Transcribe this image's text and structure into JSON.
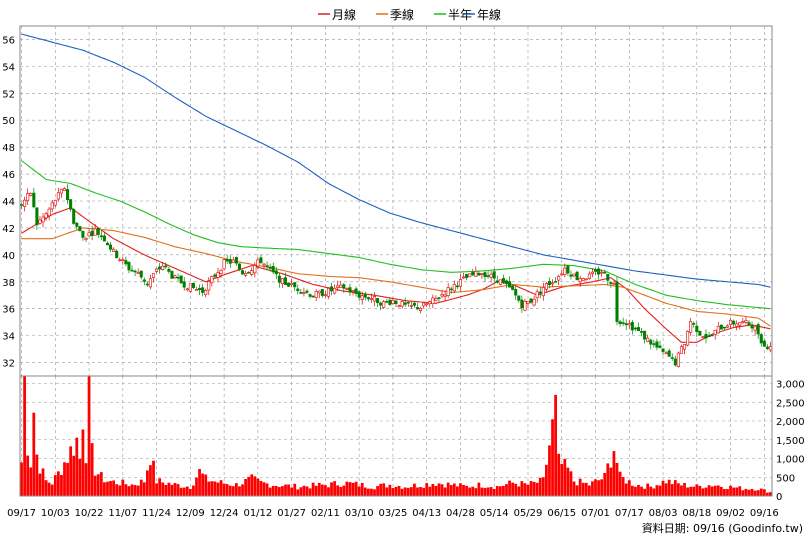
{
  "legend": [
    {
      "label": "月線",
      "color": "#e02020"
    },
    {
      "label": "季線",
      "color": "#e07020"
    },
    {
      "label": "半年",
      "color": "#20c020"
    },
    {
      "label": "年線",
      "color": "#2060c0"
    }
  ],
  "footer": "資料日期: 09/16 (Goodinfo.tw)",
  "colors": {
    "up": "#e00000",
    "down": "#008000",
    "volume": "#ff0000",
    "grid": "#999999"
  },
  "chart_data": {
    "type": "candlestick",
    "price_axis": {
      "min": 31,
      "max": 57,
      "ticks": [
        32,
        34,
        36,
        38,
        40,
        42,
        44,
        46,
        48,
        50,
        52,
        54,
        56
      ]
    },
    "volume_axis": {
      "min": 0,
      "max": 3200,
      "ticks": [
        "0",
        "500",
        "1,000",
        "1,500",
        "2,000",
        "2,500",
        "3,000"
      ],
      "tick_values": [
        0,
        500,
        1000,
        1500,
        2000,
        2500,
        3000
      ]
    },
    "x_labels": [
      "09/17",
      "10/03",
      "10/22",
      "11/07",
      "11/24",
      "12/09",
      "12/24",
      "01/12",
      "01/27",
      "02/11",
      "03/10",
      "03/25",
      "04/13",
      "04/28",
      "05/14",
      "05/29",
      "06/15",
      "07/01",
      "07/17",
      "08/03",
      "08/18",
      "09/02",
      "09/16"
    ],
    "x_label_index": [
      0,
      11,
      22,
      33,
      44,
      55,
      66,
      77,
      88,
      99,
      110,
      121,
      132,
      143,
      154,
      165,
      176,
      187,
      198,
      209,
      220,
      231,
      242
    ],
    "bars": 245,
    "close_keypoints": [
      [
        0,
        43.8
      ],
      [
        3,
        44.6
      ],
      [
        5,
        42.3
      ],
      [
        8,
        43.0
      ],
      [
        11,
        44.1
      ],
      [
        14,
        45.0
      ],
      [
        17,
        42.5
      ],
      [
        20,
        41.3
      ],
      [
        24,
        41.8
      ],
      [
        27,
        41.2
      ],
      [
        30,
        40.2
      ],
      [
        35,
        39.0
      ],
      [
        38,
        38.6
      ],
      [
        41,
        37.9
      ],
      [
        44,
        38.8
      ],
      [
        46,
        39.2
      ],
      [
        50,
        38.2
      ],
      [
        55,
        37.6
      ],
      [
        59,
        37.3
      ],
      [
        63,
        38.5
      ],
      [
        66,
        39.4
      ],
      [
        69,
        39.5
      ],
      [
        72,
        38.7
      ],
      [
        75,
        39.0
      ],
      [
        78,
        39.6
      ],
      [
        81,
        38.8
      ],
      [
        85,
        38.0
      ],
      [
        90,
        37.5
      ],
      [
        95,
        37.0
      ],
      [
        100,
        37.3
      ],
      [
        105,
        37.6
      ],
      [
        110,
        37.0
      ],
      [
        114,
        36.8
      ],
      [
        118,
        36.4
      ],
      [
        121,
        36.6
      ],
      [
        125,
        36.2
      ],
      [
        130,
        36.1
      ],
      [
        135,
        36.7
      ],
      [
        140,
        37.6
      ],
      [
        145,
        38.3
      ],
      [
        150,
        38.7
      ],
      [
        155,
        38.2
      ],
      [
        160,
        37.3
      ],
      [
        163,
        36.3
      ],
      [
        166,
        36.6
      ],
      [
        170,
        37.6
      ],
      [
        174,
        38.2
      ],
      [
        177,
        39.0
      ],
      [
        181,
        38.3
      ],
      [
        185,
        38.4
      ],
      [
        189,
        38.8
      ],
      [
        193,
        37.8
      ],
      [
        194,
        35.2
      ],
      [
        197,
        35.0
      ],
      [
        201,
        34.3
      ],
      [
        205,
        33.5
      ],
      [
        208,
        32.9
      ],
      [
        211,
        32.4
      ],
      [
        213,
        32.0
      ],
      [
        216,
        33.5
      ],
      [
        218,
        35.1
      ],
      [
        221,
        34.2
      ],
      [
        224,
        33.8
      ],
      [
        227,
        34.5
      ],
      [
        230,
        34.9
      ],
      [
        234,
        35.0
      ],
      [
        238,
        34.8
      ],
      [
        240,
        34.2
      ],
      [
        242,
        33.2
      ],
      [
        244,
        33.3
      ]
    ],
    "volume_keypoints": [
      [
        0,
        900
      ],
      [
        1,
        3100
      ],
      [
        2,
        1400
      ],
      [
        3,
        900
      ],
      [
        4,
        2300
      ],
      [
        5,
        1100
      ],
      [
        6,
        800
      ],
      [
        8,
        400
      ],
      [
        10,
        350
      ],
      [
        12,
        600
      ],
      [
        14,
        900
      ],
      [
        16,
        1200
      ],
      [
        18,
        1500
      ],
      [
        19,
        1000
      ],
      [
        20,
        2200
      ],
      [
        21,
        1200
      ],
      [
        22,
        2800
      ],
      [
        23,
        1100
      ],
      [
        24,
        700
      ],
      [
        26,
        500
      ],
      [
        28,
        400
      ],
      [
        32,
        350
      ],
      [
        36,
        300
      ],
      [
        40,
        400
      ],
      [
        42,
        1100
      ],
      [
        44,
        400
      ],
      [
        50,
        300
      ],
      [
        55,
        250
      ],
      [
        58,
        650
      ],
      [
        60,
        450
      ],
      [
        65,
        350
      ],
      [
        70,
        300
      ],
      [
        75,
        450
      ],
      [
        78,
        350
      ],
      [
        82,
        300
      ],
      [
        90,
        250
      ],
      [
        100,
        300
      ],
      [
        105,
        350
      ],
      [
        110,
        300
      ],
      [
        115,
        250
      ],
      [
        120,
        300
      ],
      [
        125,
        250
      ],
      [
        130,
        300
      ],
      [
        135,
        350
      ],
      [
        140,
        300
      ],
      [
        145,
        250
      ],
      [
        150,
        300
      ],
      [
        155,
        250
      ],
      [
        160,
        350
      ],
      [
        165,
        300
      ],
      [
        170,
        400
      ],
      [
        174,
        2300
      ],
      [
        175,
        900
      ],
      [
        178,
        700
      ],
      [
        180,
        400
      ],
      [
        185,
        300
      ],
      [
        190,
        500
      ],
      [
        193,
        1300
      ],
      [
        195,
        500
      ],
      [
        200,
        300
      ],
      [
        205,
        250
      ],
      [
        210,
        400
      ],
      [
        215,
        300
      ],
      [
        220,
        250
      ],
      [
        225,
        300
      ],
      [
        230,
        250
      ],
      [
        235,
        200
      ],
      [
        240,
        200
      ],
      [
        244,
        100
      ]
    ],
    "ma_month": [
      [
        0,
        41.6
      ],
      [
        10,
        43.0
      ],
      [
        16,
        43.5
      ],
      [
        22,
        42.5
      ],
      [
        30,
        41.2
      ],
      [
        40,
        40.0
      ],
      [
        50,
        39.0
      ],
      [
        60,
        38.0
      ],
      [
        67,
        38.6
      ],
      [
        75,
        39.2
      ],
      [
        85,
        38.6
      ],
      [
        95,
        37.8
      ],
      [
        105,
        37.3
      ],
      [
        115,
        37.0
      ],
      [
        125,
        36.6
      ],
      [
        135,
        36.4
      ],
      [
        145,
        37.0
      ],
      [
        150,
        37.4
      ],
      [
        155,
        38.0
      ],
      [
        160,
        37.8
      ],
      [
        168,
        37.0
      ],
      [
        176,
        37.6
      ],
      [
        186,
        38.0
      ],
      [
        192,
        38.3
      ],
      [
        197,
        37.5
      ],
      [
        203,
        36.0
      ],
      [
        210,
        34.5
      ],
      [
        215,
        33.5
      ],
      [
        220,
        33.5
      ],
      [
        225,
        34.1
      ],
      [
        232,
        34.6
      ],
      [
        238,
        34.8
      ],
      [
        244,
        34.5
      ]
    ],
    "ma_quarter": [
      [
        0,
        41.2
      ],
      [
        10,
        41.2
      ],
      [
        20,
        42.0
      ],
      [
        30,
        41.8
      ],
      [
        40,
        41.3
      ],
      [
        50,
        40.6
      ],
      [
        60,
        40.1
      ],
      [
        70,
        39.5
      ],
      [
        80,
        39.1
      ],
      [
        90,
        38.6
      ],
      [
        100,
        38.4
      ],
      [
        110,
        38.3
      ],
      [
        120,
        38.0
      ],
      [
        130,
        37.6
      ],
      [
        140,
        37.2
      ],
      [
        150,
        37.4
      ],
      [
        160,
        37.8
      ],
      [
        170,
        37.6
      ],
      [
        180,
        37.7
      ],
      [
        190,
        37.8
      ],
      [
        196,
        37.6
      ],
      [
        203,
        37.0
      ],
      [
        210,
        36.4
      ],
      [
        220,
        35.8
      ],
      [
        230,
        35.6
      ],
      [
        240,
        35.3
      ],
      [
        244,
        34.7
      ]
    ],
    "ma_half": [
      [
        0,
        47.0
      ],
      [
        8,
        45.6
      ],
      [
        16,
        45.3
      ],
      [
        24,
        44.6
      ],
      [
        32,
        44.0
      ],
      [
        40,
        43.2
      ],
      [
        48,
        42.3
      ],
      [
        56,
        41.5
      ],
      [
        64,
        40.9
      ],
      [
        72,
        40.6
      ],
      [
        80,
        40.5
      ],
      [
        90,
        40.4
      ],
      [
        100,
        40.1
      ],
      [
        110,
        39.8
      ],
      [
        120,
        39.3
      ],
      [
        130,
        38.9
      ],
      [
        140,
        38.7
      ],
      [
        150,
        38.8
      ],
      [
        160,
        39.0
      ],
      [
        170,
        39.3
      ],
      [
        180,
        39.2
      ],
      [
        190,
        38.8
      ],
      [
        200,
        37.8
      ],
      [
        210,
        37.0
      ],
      [
        220,
        36.6
      ],
      [
        230,
        36.3
      ],
      [
        244,
        36.0
      ]
    ],
    "ma_year": [
      [
        0,
        56.4
      ],
      [
        10,
        55.8
      ],
      [
        20,
        55.2
      ],
      [
        30,
        54.3
      ],
      [
        40,
        53.2
      ],
      [
        50,
        51.7
      ],
      [
        60,
        50.3
      ],
      [
        70,
        49.2
      ],
      [
        80,
        48.1
      ],
      [
        90,
        46.9
      ],
      [
        100,
        45.3
      ],
      [
        110,
        44.1
      ],
      [
        120,
        43.1
      ],
      [
        130,
        42.4
      ],
      [
        140,
        41.8
      ],
      [
        150,
        41.2
      ],
      [
        160,
        40.6
      ],
      [
        170,
        40.0
      ],
      [
        180,
        39.6
      ],
      [
        190,
        39.2
      ],
      [
        200,
        38.8
      ],
      [
        210,
        38.5
      ],
      [
        220,
        38.2
      ],
      [
        230,
        38.0
      ],
      [
        240,
        37.8
      ],
      [
        244,
        37.6
      ]
    ]
  }
}
